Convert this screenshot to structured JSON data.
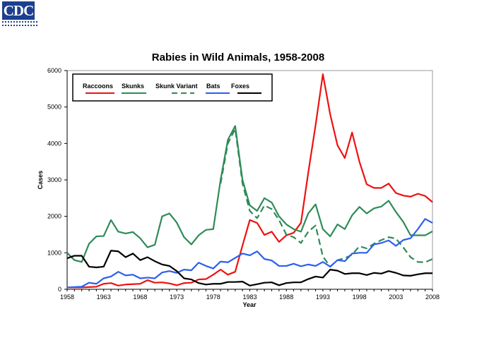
{
  "logo": {
    "text": "CDC",
    "subtext": "Centers for Disease Control and Prevention"
  },
  "chart_data": {
    "type": "line",
    "title": "Rabies in Wild Animals, 1958-2008",
    "xlabel": "Year",
    "ylabel": "Cases",
    "xlim": [
      1958,
      2008
    ],
    "ylim": [
      0,
      6000
    ],
    "yticks": [
      0,
      1000,
      2000,
      3000,
      4000,
      5000,
      6000
    ],
    "xticks": [
      1958,
      1963,
      1968,
      1973,
      1978,
      1983,
      1988,
      1993,
      1998,
      2003,
      2008
    ],
    "grid": false,
    "legend": "top-left, inside",
    "x_start": 1958,
    "series": [
      {
        "name": "Raccoons",
        "color": "#ee1111",
        "dash": false,
        "start": 1958,
        "values": [
          50,
          50,
          50,
          60,
          70,
          150,
          170,
          100,
          130,
          140,
          150,
          250,
          180,
          190,
          160,
          110,
          170,
          180,
          270,
          280,
          400,
          540,
          400,
          480,
          1200,
          1900,
          1820,
          1490,
          1580,
          1300,
          1480,
          1550,
          1820,
          3200,
          4500,
          5900,
          4800,
          3950,
          3600,
          4300,
          3500,
          2880,
          2780,
          2780,
          2900,
          2640,
          2570,
          2540,
          2620,
          2560,
          2390
        ]
      },
      {
        "name": "Skunks",
        "color": "#2e8b57",
        "dash": false,
        "start": 1958,
        "values": [
          1000,
          800,
          750,
          1250,
          1450,
          1460,
          1900,
          1580,
          1530,
          1570,
          1400,
          1150,
          1220,
          2000,
          2080,
          1830,
          1430,
          1230,
          1480,
          1630,
          1650,
          3000,
          4100,
          4480,
          3000,
          2300,
          2150,
          2500,
          2380,
          2000,
          1780,
          1650,
          1580,
          2080,
          2330,
          1650,
          1450,
          1780,
          1650,
          2030,
          2260,
          2080,
          2220,
          2270,
          2430,
          2120,
          1850,
          1480,
          1480,
          1480,
          1590
        ]
      },
      {
        "name": "Skunk Variant",
        "color": "#2e8b57",
        "dash": true,
        "start": 1979,
        "values": [
          2900,
          4000,
          4400,
          2900,
          2150,
          1950,
          2300,
          2200,
          1900,
          1500,
          1430,
          1270,
          1580,
          1750,
          900,
          620,
          800,
          850,
          950,
          1180,
          1120,
          1250,
          1350,
          1430,
          1390,
          1150,
          880,
          750,
          740,
          830
        ]
      },
      {
        "name": "Bats",
        "color": "#2b5ff0",
        "dash": false,
        "start": 1958,
        "values": [
          50,
          60,
          70,
          180,
          150,
          300,
          350,
          480,
          380,
          400,
          300,
          320,
          300,
          460,
          500,
          450,
          540,
          520,
          730,
          640,
          570,
          760,
          740,
          860,
          980,
          930,
          1040,
          830,
          790,
          640,
          640,
          700,
          630,
          680,
          640,
          750,
          620,
          800,
          770,
          980,
          1000,
          1000,
          1230,
          1270,
          1340,
          1190,
          1350,
          1400,
          1650,
          1930,
          1820
        ]
      },
      {
        "name": "Foxes",
        "color": "#000000",
        "dash": false,
        "start": 1958,
        "values": [
          850,
          920,
          920,
          620,
          600,
          620,
          1060,
          1040,
          880,
          980,
          800,
          880,
          770,
          680,
          640,
          500,
          300,
          270,
          170,
          130,
          150,
          150,
          200,
          200,
          210,
          100,
          140,
          180,
          190,
          110,
          170,
          190,
          190,
          280,
          350,
          320,
          540,
          510,
          420,
          440,
          440,
          390,
          450,
          430,
          500,
          450,
          380,
          370,
          410,
          440,
          440
        ]
      }
    ]
  }
}
